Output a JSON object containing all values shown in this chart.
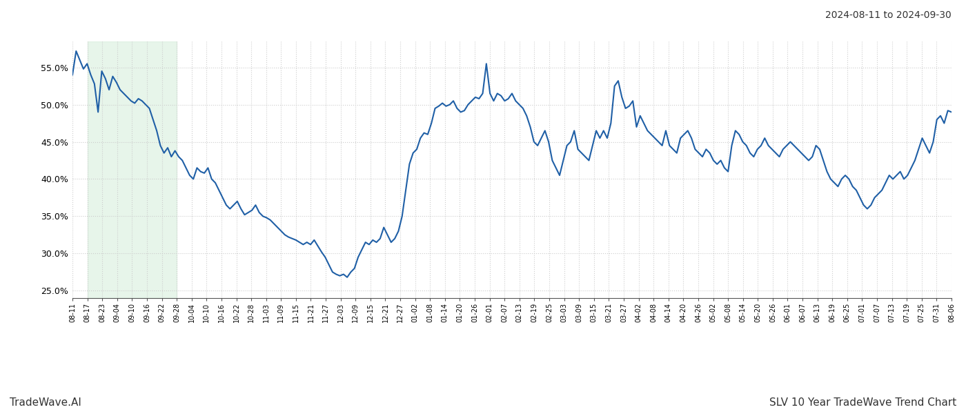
{
  "title_right": "2024-08-11 to 2024-09-30",
  "footer_left": "TradeWave.AI",
  "footer_right": "SLV 10 Year TradeWave Trend Chart",
  "line_color": "#1f5fa6",
  "line_width": 1.5,
  "highlight_color": "#d4edda",
  "highlight_alpha": 0.55,
  "background_color": "#ffffff",
  "grid_color": "#cccccc",
  "ylim": [
    24.0,
    58.5
  ],
  "yticks": [
    25.0,
    30.0,
    35.0,
    40.0,
    45.0,
    50.0,
    55.0
  ],
  "x_labels": [
    "08-11",
    "08-17",
    "08-23",
    "09-04",
    "09-10",
    "09-16",
    "09-22",
    "09-28",
    "10-04",
    "10-10",
    "10-16",
    "10-22",
    "10-28",
    "11-03",
    "11-09",
    "11-15",
    "11-21",
    "11-27",
    "12-03",
    "12-09",
    "12-15",
    "12-21",
    "12-27",
    "01-02",
    "01-08",
    "01-14",
    "01-20",
    "01-26",
    "02-01",
    "02-07",
    "02-13",
    "02-19",
    "02-25",
    "03-03",
    "03-09",
    "03-15",
    "03-21",
    "03-27",
    "04-02",
    "04-08",
    "04-14",
    "04-20",
    "04-26",
    "05-02",
    "05-08",
    "05-14",
    "05-20",
    "05-26",
    "06-01",
    "06-07",
    "06-13",
    "06-19",
    "06-25",
    "07-01",
    "07-07",
    "07-13",
    "07-19",
    "07-25",
    "07-31",
    "08-06"
  ],
  "highlight_x_start_label": "08-17",
  "highlight_x_end_label": "09-28",
  "values": [
    54.0,
    57.2,
    56.0,
    54.8,
    55.5,
    54.0,
    52.8,
    49.0,
    54.5,
    53.5,
    52.0,
    53.8,
    53.0,
    52.0,
    51.5,
    51.0,
    50.5,
    50.2,
    50.8,
    50.5,
    50.0,
    49.5,
    48.0,
    46.5,
    44.5,
    43.5,
    44.2,
    43.0,
    43.8,
    43.0,
    42.5,
    41.5,
    40.5,
    40.0,
    41.5,
    41.0,
    40.8,
    41.5,
    40.0,
    39.5,
    38.5,
    37.5,
    36.5,
    36.0,
    36.5,
    37.0,
    36.0,
    35.2,
    35.5,
    35.8,
    36.5,
    35.5,
    35.0,
    34.8,
    34.5,
    34.0,
    33.5,
    33.0,
    32.5,
    32.2,
    32.0,
    31.8,
    31.5,
    31.2,
    31.5,
    31.2,
    31.8,
    31.0,
    30.2,
    29.5,
    28.5,
    27.5,
    27.2,
    27.0,
    27.2,
    26.8,
    27.5,
    28.0,
    29.5,
    30.5,
    31.5,
    31.2,
    31.8,
    31.5,
    32.0,
    33.5,
    32.5,
    31.5,
    32.0,
    33.0,
    35.0,
    38.5,
    42.0,
    43.5,
    44.0,
    45.5,
    46.2,
    46.0,
    47.5,
    49.5,
    49.8,
    50.2,
    49.8,
    50.0,
    50.5,
    49.5,
    49.0,
    49.2,
    50.0,
    50.5,
    51.0,
    50.8,
    51.5,
    55.5,
    51.5,
    50.5,
    51.5,
    51.2,
    50.5,
    50.8,
    51.5,
    50.5,
    50.0,
    49.5,
    48.5,
    47.0,
    45.0,
    44.5,
    45.5,
    46.5,
    45.0,
    42.5,
    41.5,
    40.5,
    42.5,
    44.5,
    45.0,
    46.5,
    44.0,
    43.5,
    43.0,
    42.5,
    44.5,
    46.5,
    45.5,
    46.5,
    45.5,
    47.5,
    52.5,
    53.2,
    51.0,
    49.5,
    49.8,
    50.5,
    47.0,
    48.5,
    47.5,
    46.5,
    46.0,
    45.5,
    45.0,
    44.5,
    46.5,
    44.5,
    44.0,
    43.5,
    45.5,
    46.0,
    46.5,
    45.5,
    44.0,
    43.5,
    43.0,
    44.0,
    43.5,
    42.5,
    42.0,
    42.5,
    41.5,
    41.0,
    44.5,
    46.5,
    46.0,
    45.0,
    44.5,
    43.5,
    43.0,
    44.0,
    44.5,
    45.5,
    44.5,
    44.0,
    43.5,
    43.0,
    44.0,
    44.5,
    45.0,
    44.5,
    44.0,
    43.5,
    43.0,
    42.5,
    43.0,
    44.5,
    44.0,
    42.5,
    41.0,
    40.0,
    39.5,
    39.0,
    40.0,
    40.5,
    40.0,
    39.0,
    38.5,
    37.5,
    36.5,
    36.0,
    36.5,
    37.5,
    38.0,
    38.5,
    39.5,
    40.5,
    40.0,
    40.5,
    41.0,
    40.0,
    40.5,
    41.5,
    42.5,
    44.0,
    45.5,
    44.5,
    43.5,
    45.0,
    48.0,
    48.5,
    47.5,
    49.2,
    49.0
  ]
}
